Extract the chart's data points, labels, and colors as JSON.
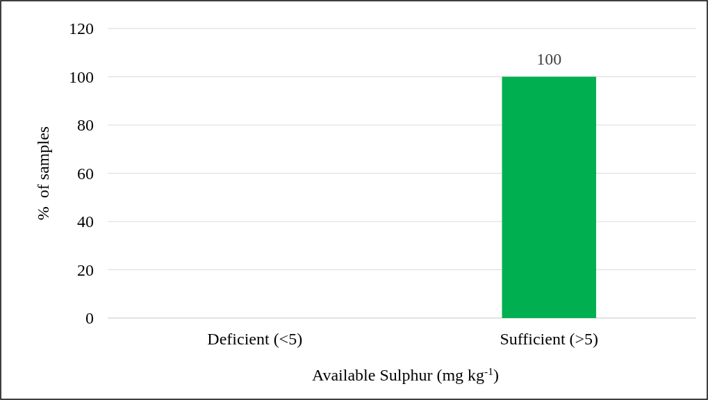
{
  "chart_data": {
    "type": "bar",
    "xlabel": "Available Sulphur (mg kg$^{-1}$)",
    "ylabel": "%  of samples",
    "categories": [
      "Deficient (<5)",
      "Sufficient (>5)"
    ],
    "values": [
      0,
      100
    ],
    "value_labels": [
      null,
      "100"
    ],
    "color": "#00b050",
    "ylim": [
      0,
      120
    ],
    "yticks": [
      0,
      20,
      40,
      60,
      80,
      100,
      120
    ],
    "grid": "y"
  }
}
